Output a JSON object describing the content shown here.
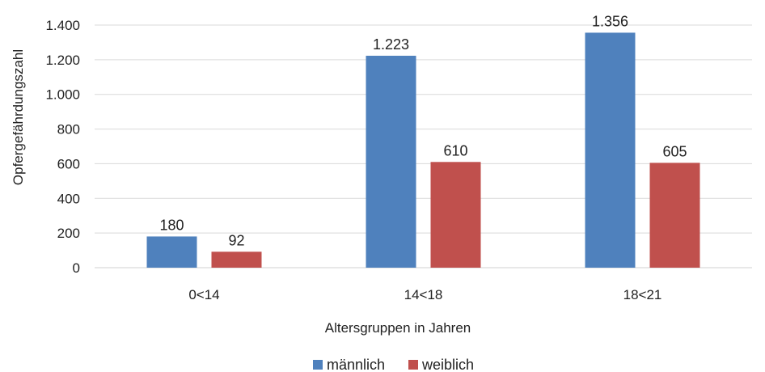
{
  "chart_data": {
    "type": "bar",
    "categories": [
      "0<14",
      "14<18",
      "18<21"
    ],
    "series": [
      {
        "name": "männlich",
        "values": [
          180,
          1223,
          1356
        ],
        "labels": [
          "180",
          "1.223",
          "1.356"
        ],
        "color": "#4f81bd"
      },
      {
        "name": "weiblich",
        "values": [
          92,
          610,
          605
        ],
        "labels": [
          "92",
          "610",
          "605"
        ],
        "color": "#c0504d"
      }
    ],
    "xlabel": "Altersgruppen in Jahren",
    "ylabel": "Opfergefährdungszahl",
    "ylim": [
      0,
      1400
    ],
    "yticks": [
      {
        "value": 0,
        "label": "0"
      },
      {
        "value": 200,
        "label": "200"
      },
      {
        "value": 400,
        "label": "400"
      },
      {
        "value": 600,
        "label": "600"
      },
      {
        "value": 800,
        "label": "800"
      },
      {
        "value": 1000,
        "label": "1.000"
      },
      {
        "value": 1200,
        "label": "1.200"
      },
      {
        "value": 1400,
        "label": "1.400"
      }
    ],
    "grid": true,
    "legend_position": "bottom",
    "gridline_color": "#d9d9d9",
    "axis_color": "#d0d0d0"
  }
}
